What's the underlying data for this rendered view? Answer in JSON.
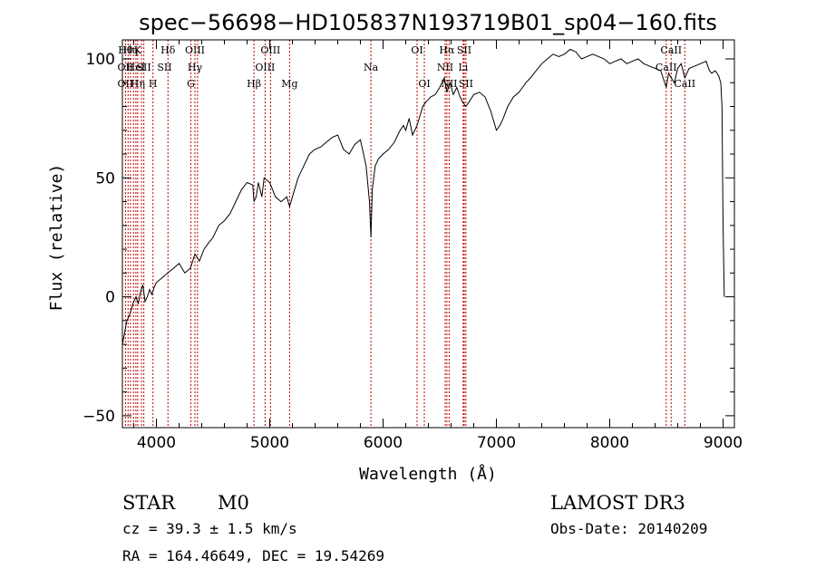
{
  "chart_data": {
    "type": "line",
    "title": "spec−56698−HD105837N193719B01_sp04−160.fits",
    "xlabel": "Wavelength (Å)",
    "ylabel": "Flux (relative)",
    "xlim": [
      3700,
      9100
    ],
    "ylim": [
      -55,
      108
    ],
    "xticks": [
      4000,
      5000,
      6000,
      7000,
      8000,
      9000
    ],
    "yticks": [
      -50,
      0,
      50,
      100
    ],
    "grid": false,
    "series": [
      {
        "x": [
          3700,
          3720,
          3740,
          3760,
          3780,
          3800,
          3820,
          3840,
          3860,
          3880,
          3900,
          3920,
          3940,
          3960,
          3980,
          4000,
          4050,
          4100,
          4150,
          4200,
          4250,
          4300,
          4340,
          4380,
          4420,
          4450,
          4500,
          4550,
          4600,
          4650,
          4700,
          4750,
          4800,
          4850,
          4861,
          4880,
          4900,
          4930,
          4950,
          5000,
          5050,
          5100,
          5150,
          5175,
          5200,
          5250,
          5300,
          5350,
          5400,
          5450,
          5500,
          5550,
          5600,
          5650,
          5700,
          5750,
          5800,
          5850,
          5880,
          5893,
          5905,
          5930,
          5960,
          6000,
          6050,
          6100,
          6150,
          6180,
          6200,
          6230,
          6260,
          6300,
          6350,
          6380,
          6420,
          6460,
          6500,
          6540,
          6563,
          6590,
          6620,
          6650,
          6680,
          6700,
          6730,
          6760,
          6800,
          6850,
          6900,
          6950,
          7000,
          7030,
          7060,
          7100,
          7150,
          7200,
          7230,
          7260,
          7300,
          7350,
          7400,
          7450,
          7500,
          7550,
          7600,
          7650,
          7700,
          7750,
          7800,
          7850,
          7900,
          7950,
          8000,
          8050,
          8100,
          8150,
          8200,
          8250,
          8300,
          8350,
          8400,
          8450,
          8498,
          8520,
          8542,
          8570,
          8600,
          8630,
          8662,
          8700,
          8750,
          8800,
          8850,
          8880,
          8900,
          8930,
          8960,
          8980,
          8990,
          9000,
          9010
        ],
        "y": [
          -20,
          -15,
          -10,
          -8,
          -5,
          -2,
          0,
          -3,
          2,
          5,
          -2,
          0,
          3,
          1,
          4,
          6,
          8,
          10,
          12,
          14,
          10,
          12,
          18,
          15,
          20,
          22,
          25,
          30,
          32,
          35,
          40,
          45,
          48,
          47,
          40,
          42,
          48,
          42,
          50,
          48,
          42,
          40,
          42,
          38,
          42,
          50,
          55,
          60,
          62,
          63,
          65,
          67,
          68,
          62,
          60,
          64,
          66,
          55,
          40,
          25,
          45,
          55,
          58,
          60,
          62,
          65,
          70,
          72,
          70,
          75,
          68,
          72,
          80,
          82,
          84,
          85,
          88,
          92,
          86,
          90,
          85,
          88,
          84,
          82,
          80,
          82,
          85,
          86,
          84,
          78,
          70,
          72,
          75,
          80,
          84,
          86,
          88,
          90,
          92,
          95,
          98,
          100,
          102,
          101,
          102,
          104,
          103,
          100,
          101,
          102,
          101,
          100,
          98,
          99,
          100,
          98,
          99,
          100,
          98,
          97,
          96,
          95,
          88,
          94,
          92,
          90,
          96,
          98,
          92,
          96,
          97,
          98,
          99,
          95,
          94,
          95,
          93,
          90,
          80,
          30,
          0
        ]
      }
    ],
    "line_labels": [
      {
        "wave": 3727,
        "row": 0,
        "text": "Hθ"
      },
      {
        "wave": 3727,
        "row": 1,
        "text": "OII"
      },
      {
        "wave": 3727,
        "row": 2,
        "text": "OII"
      },
      {
        "wave": 3771,
        "row": 0,
        "text": "Hη"
      },
      {
        "wave": 3835,
        "row": 0,
        "text": "K"
      },
      {
        "wave": 3819,
        "row": 1,
        "text": "HeI"
      },
      {
        "wave": 3835,
        "row": 2,
        "text": "Hη"
      },
      {
        "wave": 3889,
        "row": 1,
        "text": "SII"
      },
      {
        "wave": 3969,
        "row": 2,
        "text": "H"
      },
      {
        "wave": 4102,
        "row": 0,
        "text": "Hδ"
      },
      {
        "wave": 4072,
        "row": 1,
        "text": "SII"
      },
      {
        "wave": 4340,
        "row": 0,
        "text": "OIII"
      },
      {
        "wave": 4340,
        "row": 1,
        "text": "Hγ"
      },
      {
        "wave": 4304,
        "row": 2,
        "text": "G"
      },
      {
        "wave": 4861,
        "row": 2,
        "text": "Hβ"
      },
      {
        "wave": 5007,
        "row": 0,
        "text": "OIII"
      },
      {
        "wave": 4959,
        "row": 1,
        "text": "OIII"
      },
      {
        "wave": 5175,
        "row": 2,
        "text": "Mg"
      },
      {
        "wave": 5893,
        "row": 1,
        "text": "Na"
      },
      {
        "wave": 6300,
        "row": 0,
        "text": "OI"
      },
      {
        "wave": 6364,
        "row": 2,
        "text": "OI"
      },
      {
        "wave": 6563,
        "row": 0,
        "text": "Hα"
      },
      {
        "wave": 6548,
        "row": 1,
        "text": "NII"
      },
      {
        "wave": 6583,
        "row": 2,
        "text": "NII"
      },
      {
        "wave": 6716,
        "row": 0,
        "text": "SII"
      },
      {
        "wave": 6707,
        "row": 1,
        "text": "Li"
      },
      {
        "wave": 6731,
        "row": 2,
        "text": "SII"
      },
      {
        "wave": 8542,
        "row": 0,
        "text": "CaII"
      },
      {
        "wave": 8498,
        "row": 1,
        "text": "CaII"
      },
      {
        "wave": 8662,
        "row": 2,
        "text": "CaII"
      }
    ],
    "line_positions": [
      3727,
      3750,
      3771,
      3798,
      3819,
      3835,
      3869,
      3889,
      3970,
      4102,
      4304,
      4340,
      4363,
      4861,
      4959,
      5007,
      5175,
      5893,
      6300,
      6364,
      6548,
      6563,
      6583,
      6707,
      6716,
      6731,
      8498,
      8542,
      8662
    ],
    "line_color": "#c00000"
  },
  "info": {
    "class": "STAR",
    "subclass": "M0",
    "survey": "LAMOST DR3",
    "cz": "cz = 39.3 ± 1.5 km/s",
    "obs_date": "Obs-Date: 20140209",
    "coords": "RA = 164.46649, DEC =  19.54269"
  }
}
